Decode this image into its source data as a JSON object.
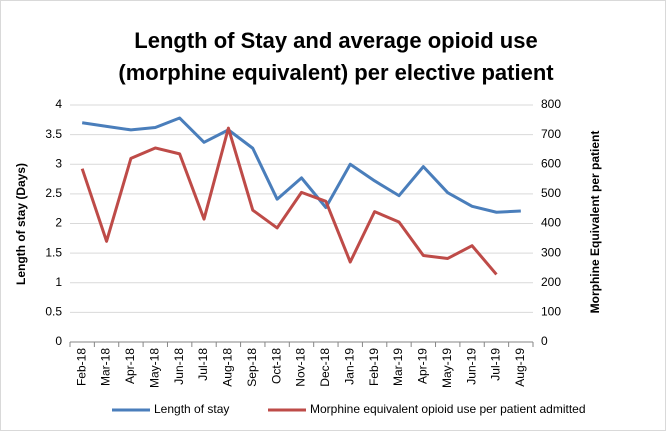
{
  "chart_data": {
    "type": "line",
    "title": [
      "Length of Stay and average opioid use",
      "(morphine equivalent) per elective patient"
    ],
    "y_label": "Length of stay (Days)",
    "y2_label": "Morphine Equivalent per patient",
    "categories": [
      "Feb-18",
      "Mar-18",
      "Apr-18",
      "May-18",
      "Jun-18",
      "Jul-18",
      "Aug-18",
      "Sep-18",
      "Oct-18",
      "Nov-18",
      "Dec-18",
      "Jan-19",
      "Feb-19",
      "Mar-19",
      "Apr-19",
      "May-19",
      "Jun-19",
      "Jul-19",
      "Aug-19"
    ],
    "series": [
      {
        "name": "Length of stay",
        "color": "#4a7ebb",
        "values": [
          3.7,
          3.64,
          3.58,
          3.62,
          3.78,
          3.37,
          3.58,
          3.27,
          2.41,
          2.77,
          2.27,
          3.0,
          2.72,
          2.47,
          2.96,
          2.52,
          2.29,
          2.19,
          2.21
        ]
      },
      {
        "name": "Morphine equivalent opioid use per patient admitted",
        "color": "#be4b48",
        "axis": "y2",
        "values": [
          585,
          340,
          620,
          655,
          635,
          415,
          722,
          445,
          385,
          505,
          475,
          270,
          440,
          405,
          292,
          282,
          325,
          228,
          null
        ]
      }
    ],
    "ylim": [
      0,
      4
    ],
    "yticks": [
      0,
      0.5,
      1,
      1.5,
      2,
      2.5,
      3,
      3.5,
      4
    ],
    "y2lim": [
      0,
      800
    ],
    "y2ticks": [
      0,
      100,
      200,
      300,
      400,
      500,
      600,
      700,
      800
    ],
    "grid": true,
    "legend": "bottom"
  }
}
